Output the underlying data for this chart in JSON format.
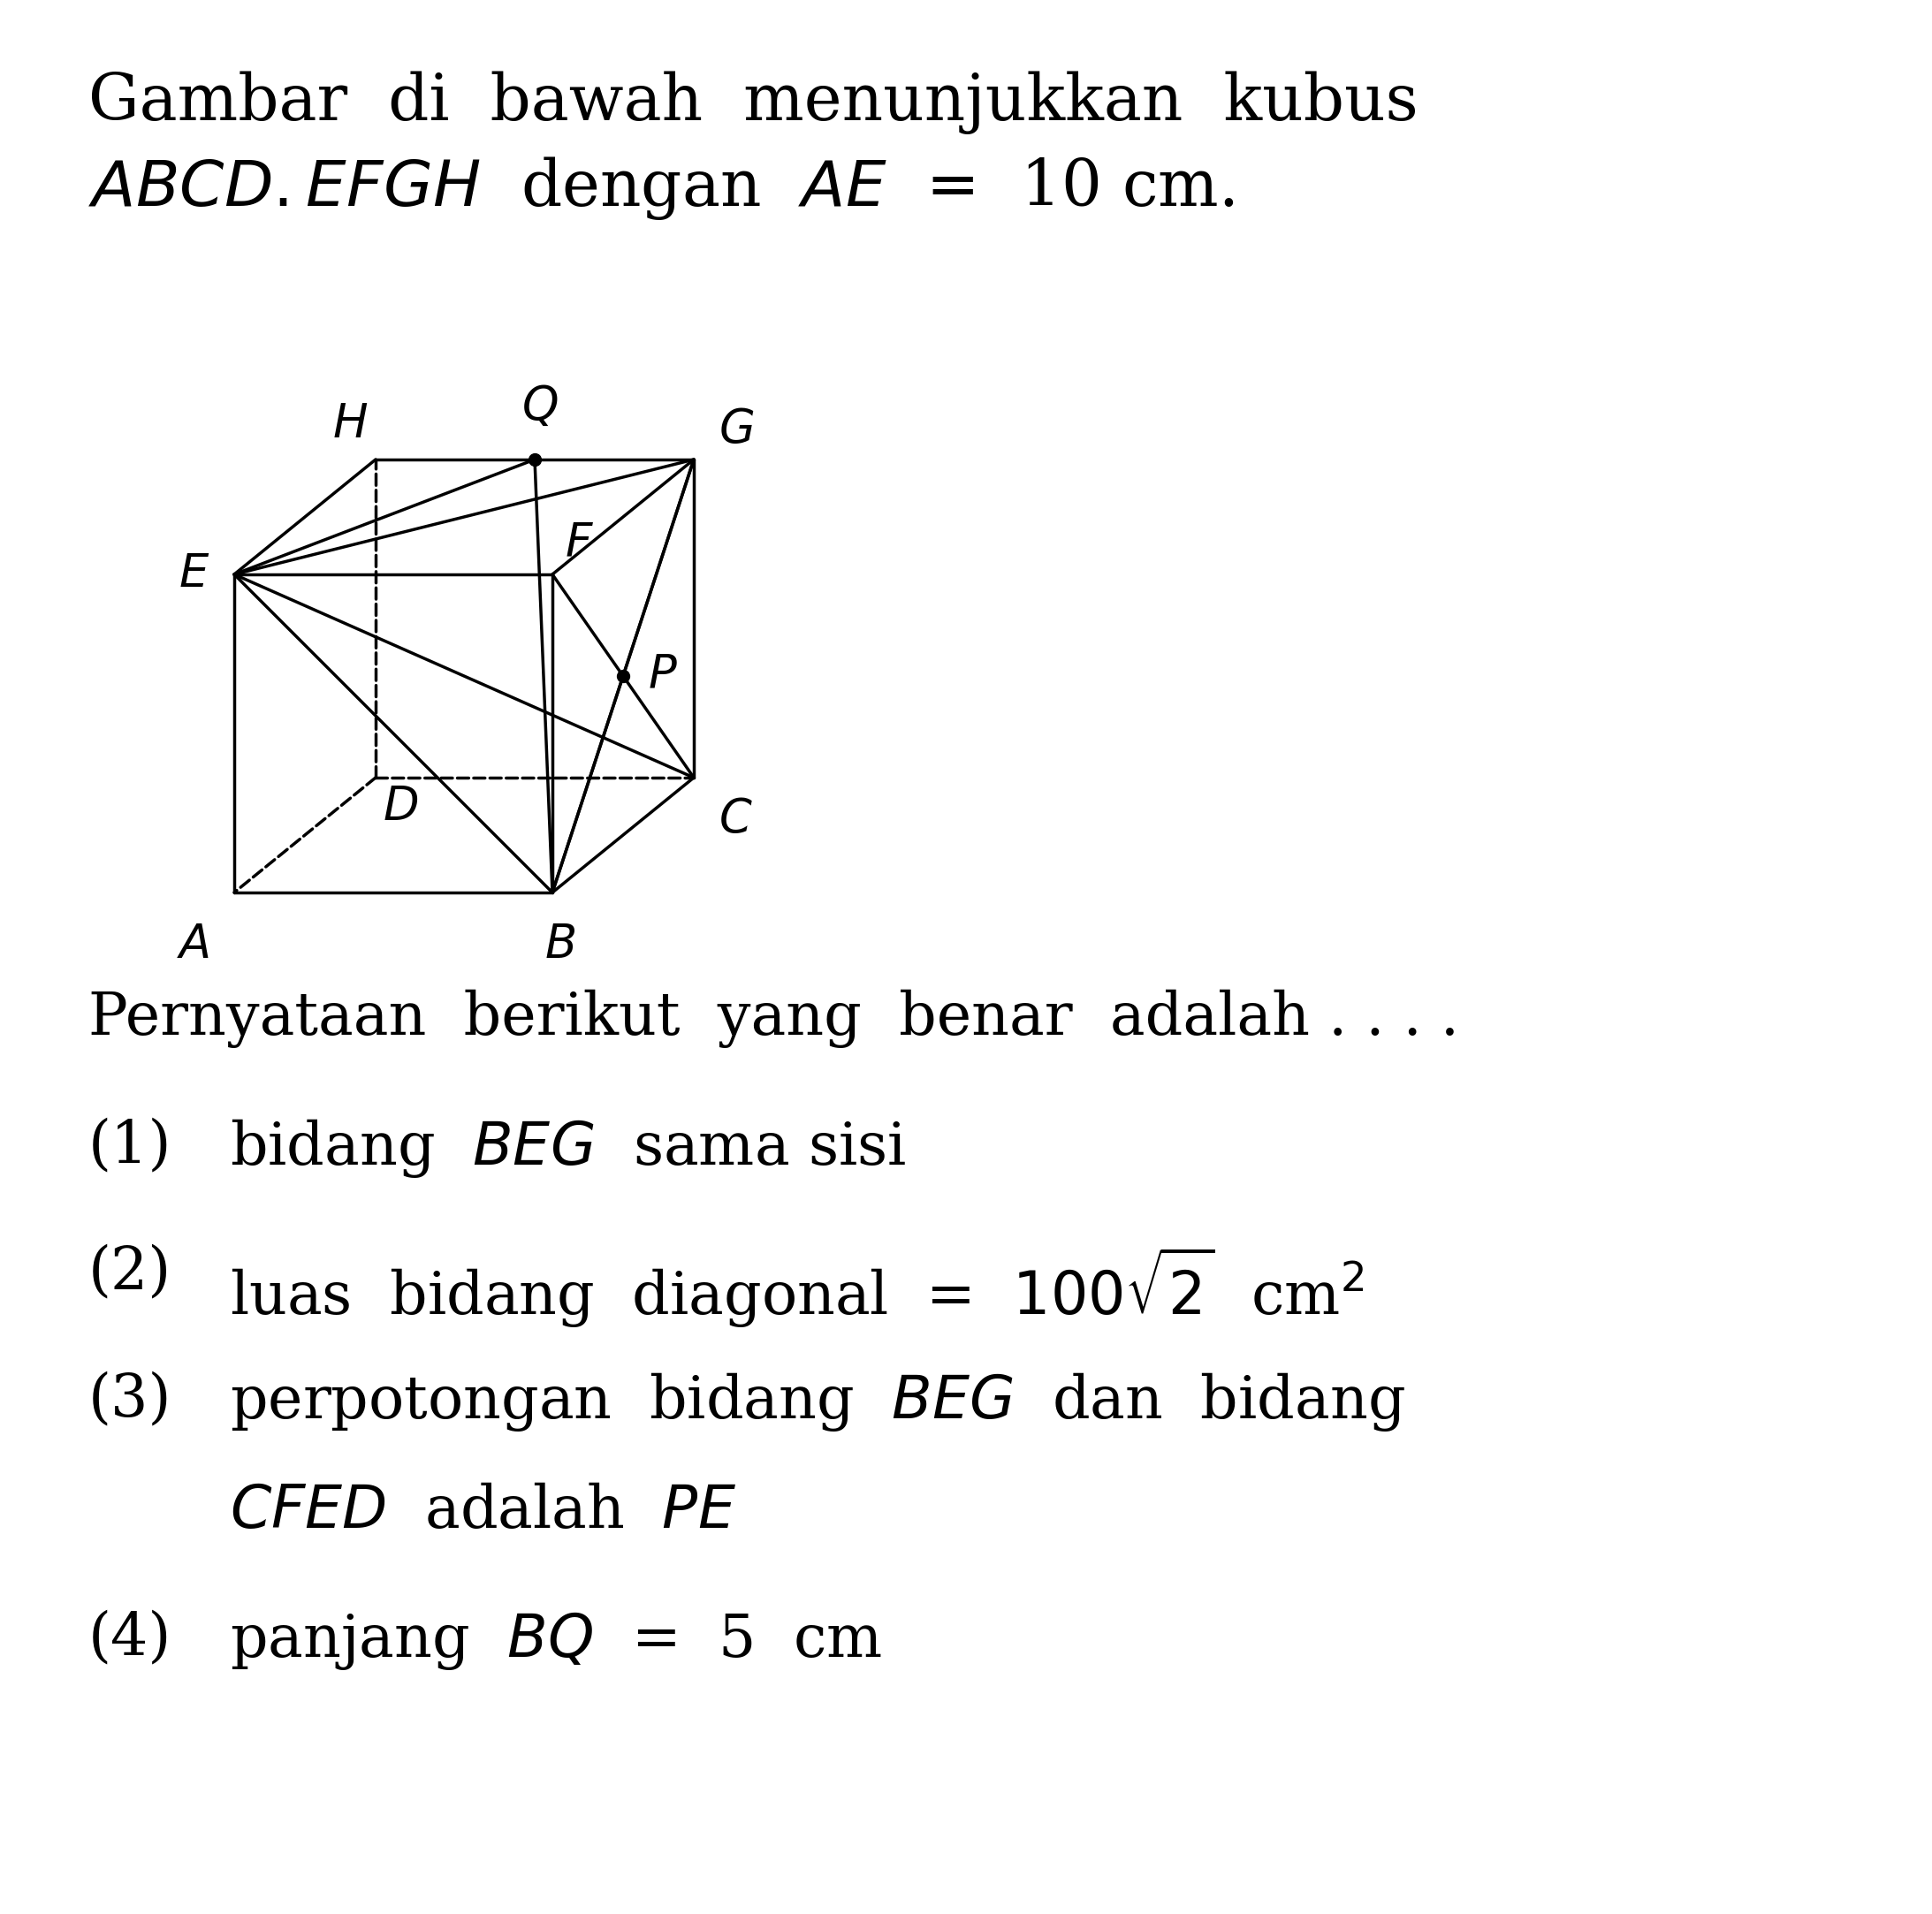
{
  "background_color": "#ffffff",
  "line_color": "#000000",
  "title_fs": 52,
  "label_fs": 38,
  "body_fs": 48,
  "cube_lw": 2.5,
  "dot_size": 10
}
